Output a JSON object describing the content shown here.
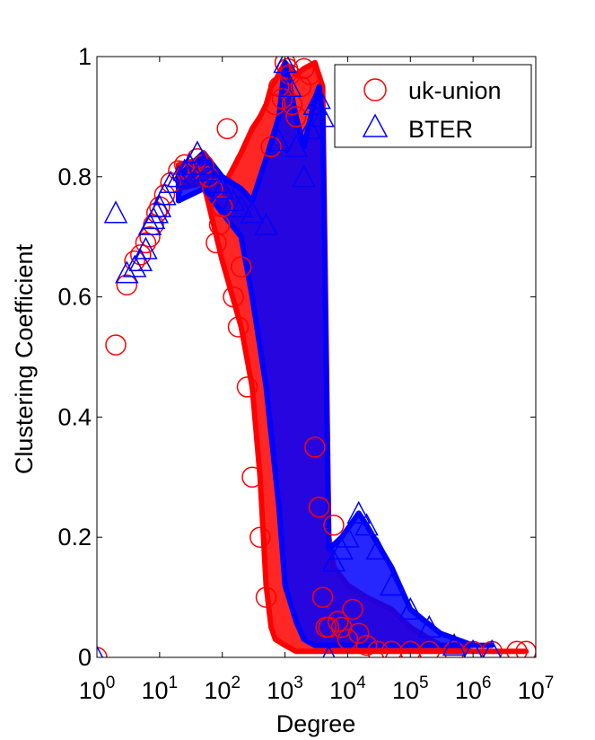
{
  "chart_data": {
    "type": "scatter",
    "xlabel": "Degree",
    "ylabel": "Clustering Coefficient",
    "xscale": "log",
    "xlim": [
      1,
      10000000
    ],
    "ylim": [
      0,
      1
    ],
    "xticks": [
      {
        "value": 1,
        "base": "10",
        "exp": "0"
      },
      {
        "value": 10,
        "base": "10",
        "exp": "1"
      },
      {
        "value": 100,
        "base": "10",
        "exp": "2"
      },
      {
        "value": 1000,
        "base": "10",
        "exp": "3"
      },
      {
        "value": 10000,
        "base": "10",
        "exp": "4"
      },
      {
        "value": 100000,
        "base": "10",
        "exp": "5"
      },
      {
        "value": 1000000,
        "base": "10",
        "exp": "6"
      },
      {
        "value": 10000000,
        "base": "10",
        "exp": "7"
      }
    ],
    "yticks": [
      {
        "value": 0,
        "label": "0"
      },
      {
        "value": 0.2,
        "label": "0.2"
      },
      {
        "value": 0.4,
        "label": "0.4"
      },
      {
        "value": 0.6,
        "label": "0.6"
      },
      {
        "value": 0.8,
        "label": "0.8"
      },
      {
        "value": 1,
        "label": "1"
      }
    ],
    "legend_position": "top-right",
    "series": [
      {
        "name": "uk-union",
        "marker": "circle",
        "color": "#ff0000",
        "x": [
          1,
          2,
          3,
          4,
          5,
          6,
          7,
          8,
          9,
          10,
          12,
          15,
          20,
          25,
          30,
          40,
          50,
          60,
          70,
          80,
          90,
          100,
          120,
          150,
          180,
          200,
          250,
          300,
          400,
          500,
          600,
          700,
          800,
          900,
          1000,
          1100,
          1200,
          1300,
          1500,
          1800,
          2000,
          2500,
          3000,
          3500,
          4000,
          4500,
          5000,
          6000,
          7000,
          8000,
          10000,
          12000,
          15000,
          20000,
          30000,
          50000,
          100000,
          200000,
          500000,
          1000000,
          2000000,
          5000000,
          7000000
        ],
        "y": [
          0,
          0.52,
          0.62,
          0.66,
          0.67,
          0.69,
          0.7,
          0.72,
          0.74,
          0.75,
          0.77,
          0.79,
          0.81,
          0.82,
          0.81,
          0.83,
          0.82,
          0.8,
          0.78,
          0.69,
          0.72,
          0.75,
          0.88,
          0.6,
          0.55,
          0.65,
          0.45,
          0.3,
          0.2,
          0.1,
          0.85,
          0.92,
          0.95,
          0.93,
          0.99,
          0.98,
          0.97,
          0.92,
          0.9,
          0.95,
          0.98,
          0.97,
          0.35,
          0.25,
          0.1,
          0.05,
          0.05,
          0.22,
          0.06,
          0.05,
          0.03,
          0.08,
          0.04,
          0.02,
          0.01,
          0.01,
          0.01,
          0.01,
          0.01,
          0.01,
          0.01,
          0.01,
          0.01
        ],
        "band": {
          "x": [
            20,
            50,
            100,
            200,
            300,
            400,
            500,
            600,
            700,
            1000,
            1500,
            2000,
            3000,
            4000,
            5000,
            6000,
            10000,
            20000,
            50000,
            100000,
            300000,
            1000000,
            7000000
          ],
          "upper": [
            0.82,
            0.83,
            0.78,
            0.84,
            0.88,
            0.9,
            0.92,
            0.95,
            0.96,
            0.99,
            0.97,
            0.98,
            0.99,
            0.95,
            0.2,
            0.15,
            0.12,
            0.1,
            0.08,
            0.05,
            0.02,
            0.01,
            0.01
          ],
          "lower": [
            0.78,
            0.79,
            0.66,
            0.55,
            0.45,
            0.3,
            0.12,
            0.05,
            0.03,
            0.02,
            0.01,
            0.01,
            0.01,
            0.01,
            0.01,
            0.01,
            0.01,
            0.01,
            0.01,
            0.01,
            0.01,
            0.01,
            0.01
          ]
        }
      },
      {
        "name": "BTER",
        "marker": "triangle",
        "color": "#0000ff",
        "x": [
          1,
          2,
          3,
          4,
          5,
          6,
          7,
          8,
          9,
          10,
          12,
          15,
          20,
          25,
          30,
          40,
          50,
          60,
          80,
          100,
          150,
          200,
          300,
          500,
          800,
          1000,
          1200,
          1500,
          2000,
          2500,
          3000,
          3500,
          4000,
          5000,
          6000,
          8000,
          10000,
          15000,
          20000,
          30000,
          50000,
          100000,
          200000,
          500000,
          1000000,
          2000000
        ],
        "y": [
          0,
          0.74,
          0.64,
          0.65,
          0.66,
          0.68,
          0.72,
          0.73,
          0.74,
          0.75,
          0.77,
          0.79,
          0.8,
          0.81,
          0.82,
          0.84,
          0.82,
          0.81,
          0.79,
          0.78,
          0.76,
          0.75,
          0.74,
          0.72,
          0.86,
          0.99,
          0.95,
          0.85,
          0.8,
          0.88,
          0.92,
          0.93,
          0.9,
          0.0,
          0.16,
          0.18,
          0.2,
          0.24,
          0.22,
          0.18,
          0.12,
          0.08,
          0.05,
          0.02,
          0.01,
          0.01
        ],
        "band": {
          "x": [
            20,
            50,
            100,
            200,
            300,
            500,
            800,
            1000,
            1500,
            2000,
            3000,
            3500,
            4000,
            5000,
            8000,
            15000,
            20000,
            50000,
            100000,
            300000,
            1000000,
            2000000
          ],
          "upper": [
            0.8,
            0.84,
            0.8,
            0.78,
            0.76,
            0.83,
            0.9,
            0.99,
            0.9,
            0.85,
            0.93,
            0.95,
            0.9,
            0.18,
            0.2,
            0.24,
            0.22,
            0.15,
            0.08,
            0.04,
            0.02,
            0.02
          ],
          "lower": [
            0.76,
            0.78,
            0.74,
            0.7,
            0.6,
            0.45,
            0.25,
            0.12,
            0.06,
            0.03,
            0.02,
            0.02,
            0.02,
            0.02,
            0.02,
            0.02,
            0.02,
            0.02,
            0.02,
            0.02,
            0.02,
            0.02
          ]
        }
      }
    ]
  }
}
